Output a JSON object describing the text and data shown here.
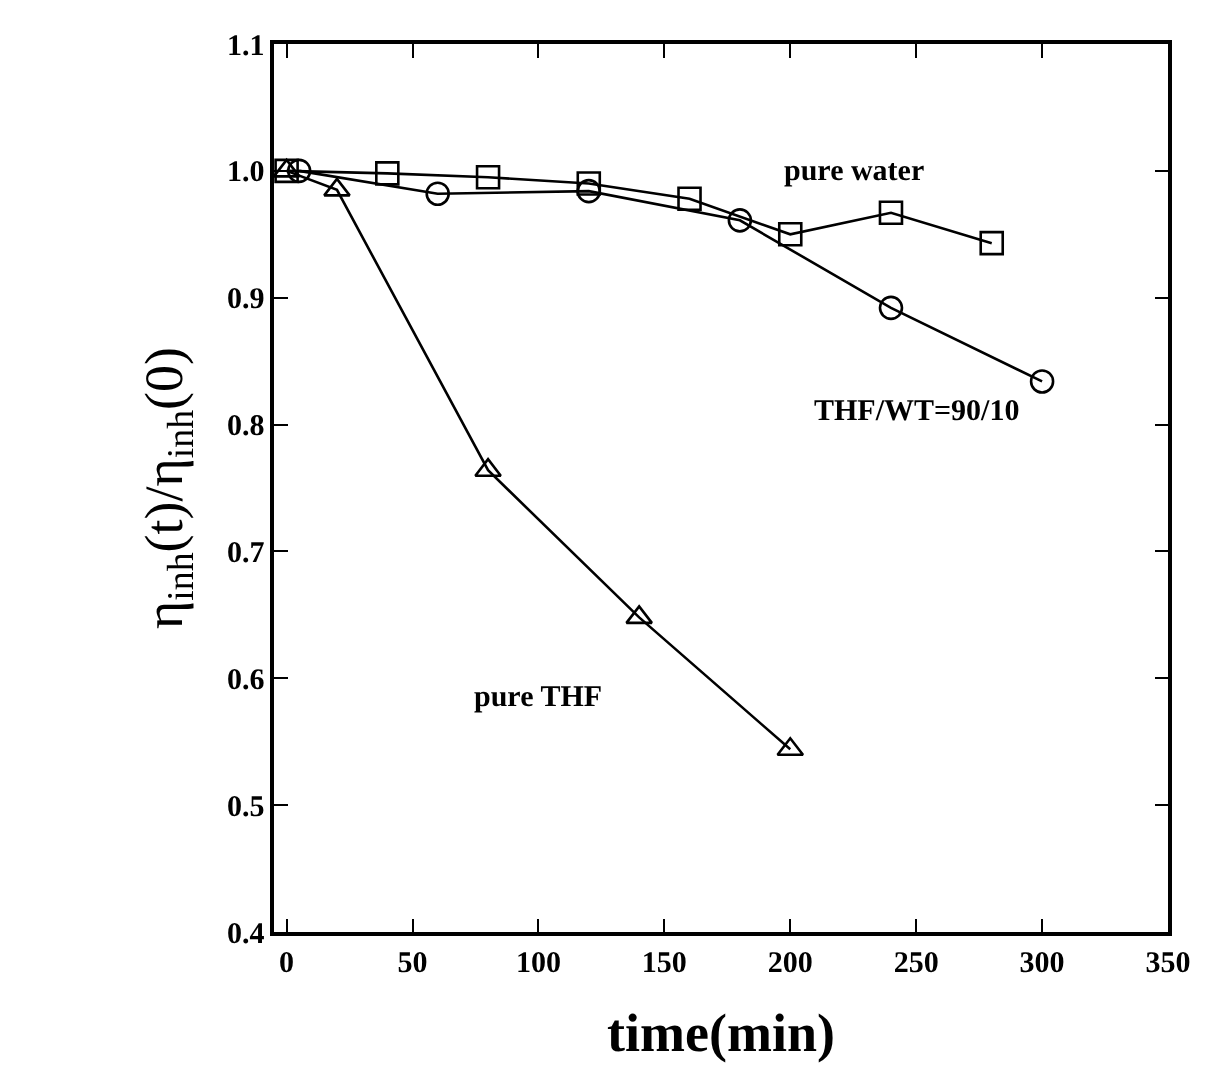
{
  "chart_data": {
    "type": "line",
    "xlabel": "time(min)",
    "ylabel": "η$_{inh}$(t)/η$_{inh}$(0)",
    "xlim": [
      -5,
      350
    ],
    "xticks": [
      0,
      50,
      100,
      150,
      200,
      250,
      300,
      350
    ],
    "ylim": [
      0.4,
      1.1
    ],
    "yticks": [
      0.4,
      0.5,
      0.6,
      0.7,
      0.8,
      0.9,
      {
        "value": 1,
        "label": "1.0"
      },
      1.1
    ],
    "grid": false,
    "legend": false,
    "line_style": "solid",
    "series": [
      {
        "name": "pure water",
        "color": "#000000",
        "marker": "square",
        "x": [
          0,
          40,
          80,
          120,
          160,
          200,
          240,
          280
        ],
        "values": [
          1.0,
          0.998,
          0.995,
          0.99,
          0.978,
          0.95,
          0.967,
          0.943
        ]
      },
      {
        "name": "THF/WT=90/10",
        "color": "#000000",
        "marker": "circle",
        "x": [
          5,
          60,
          120,
          180,
          240,
          300
        ],
        "values": [
          1.0,
          0.982,
          0.984,
          0.961,
          0.892,
          0.834
        ]
      },
      {
        "name": "pure THF",
        "color": "#000000",
        "marker": "triangle",
        "x": [
          0,
          20,
          80,
          140,
          200
        ],
        "values": [
          1.0,
          0.985,
          0.764,
          0.648,
          0.544
        ]
      }
    ]
  }
}
